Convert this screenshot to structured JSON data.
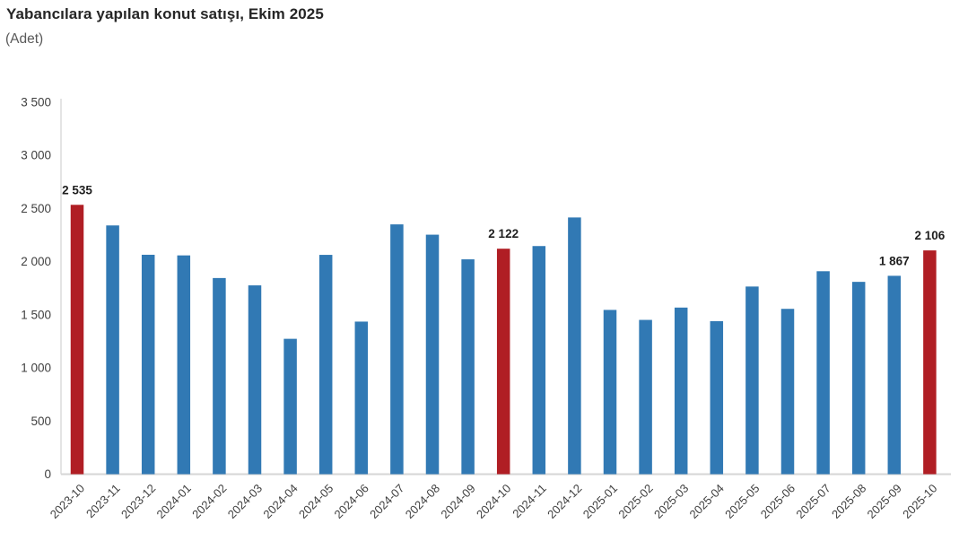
{
  "header": {
    "title": "Yabancılara yapılan konut satışı, Ekim 2025",
    "subtitle": "(Adet)"
  },
  "colors": {
    "bar": "#3179B4",
    "highlight": "#B01E24",
    "axis_line": "#D6D6D6",
    "tick_text": "#404040",
    "point_label_text": "#1F1F1F",
    "background": "#FFFFFF"
  },
  "chart_data": {
    "type": "bar",
    "title": "Yabancılara yapılan konut satışı, Ekim 2025",
    "subtitle": "(Adet)",
    "xlabel": "",
    "ylabel": "Adet",
    "ylim": [
      0,
      3500
    ],
    "grid": false,
    "legend": false,
    "categories": [
      "2023-10",
      "2023-11",
      "2023-12",
      "2024-01",
      "2024-02",
      "2024-03",
      "2024-04",
      "2024-05",
      "2024-06",
      "2024-07",
      "2024-08",
      "2024-09",
      "2024-10",
      "2024-11",
      "2024-12",
      "2025-01",
      "2025-02",
      "2025-03",
      "2025-04",
      "2025-05",
      "2025-06",
      "2025-07",
      "2025-08",
      "2025-09",
      "2025-10"
    ],
    "values": [
      2535,
      2341,
      2065,
      2059,
      1846,
      1777,
      1274,
      2064,
      1436,
      2351,
      2254,
      2022,
      2122,
      2147,
      2416,
      1546,
      1452,
      1568,
      1440,
      1766,
      1556,
      1910,
      1810,
      1867,
      2106
    ],
    "highlighted_categories": [
      "2023-10",
      "2024-10",
      "2025-10"
    ],
    "point_labels": [
      {
        "category": "2023-10",
        "text": "2 535"
      },
      {
        "category": "2024-10",
        "text": "2 122"
      },
      {
        "category": "2025-09",
        "text": "1 867"
      },
      {
        "category": "2025-10",
        "text": "2 106"
      }
    ],
    "yticks": [
      {
        "value": 0,
        "label": "0"
      },
      {
        "value": 500,
        "label": "500"
      },
      {
        "value": 1000,
        "label": "1 000"
      },
      {
        "value": 1500,
        "label": "1 500"
      },
      {
        "value": 2000,
        "label": "2 000"
      },
      {
        "value": 2500,
        "label": "2 500"
      },
      {
        "value": 3000,
        "label": "3 000"
      },
      {
        "value": 3500,
        "label": "3 500"
      }
    ]
  }
}
